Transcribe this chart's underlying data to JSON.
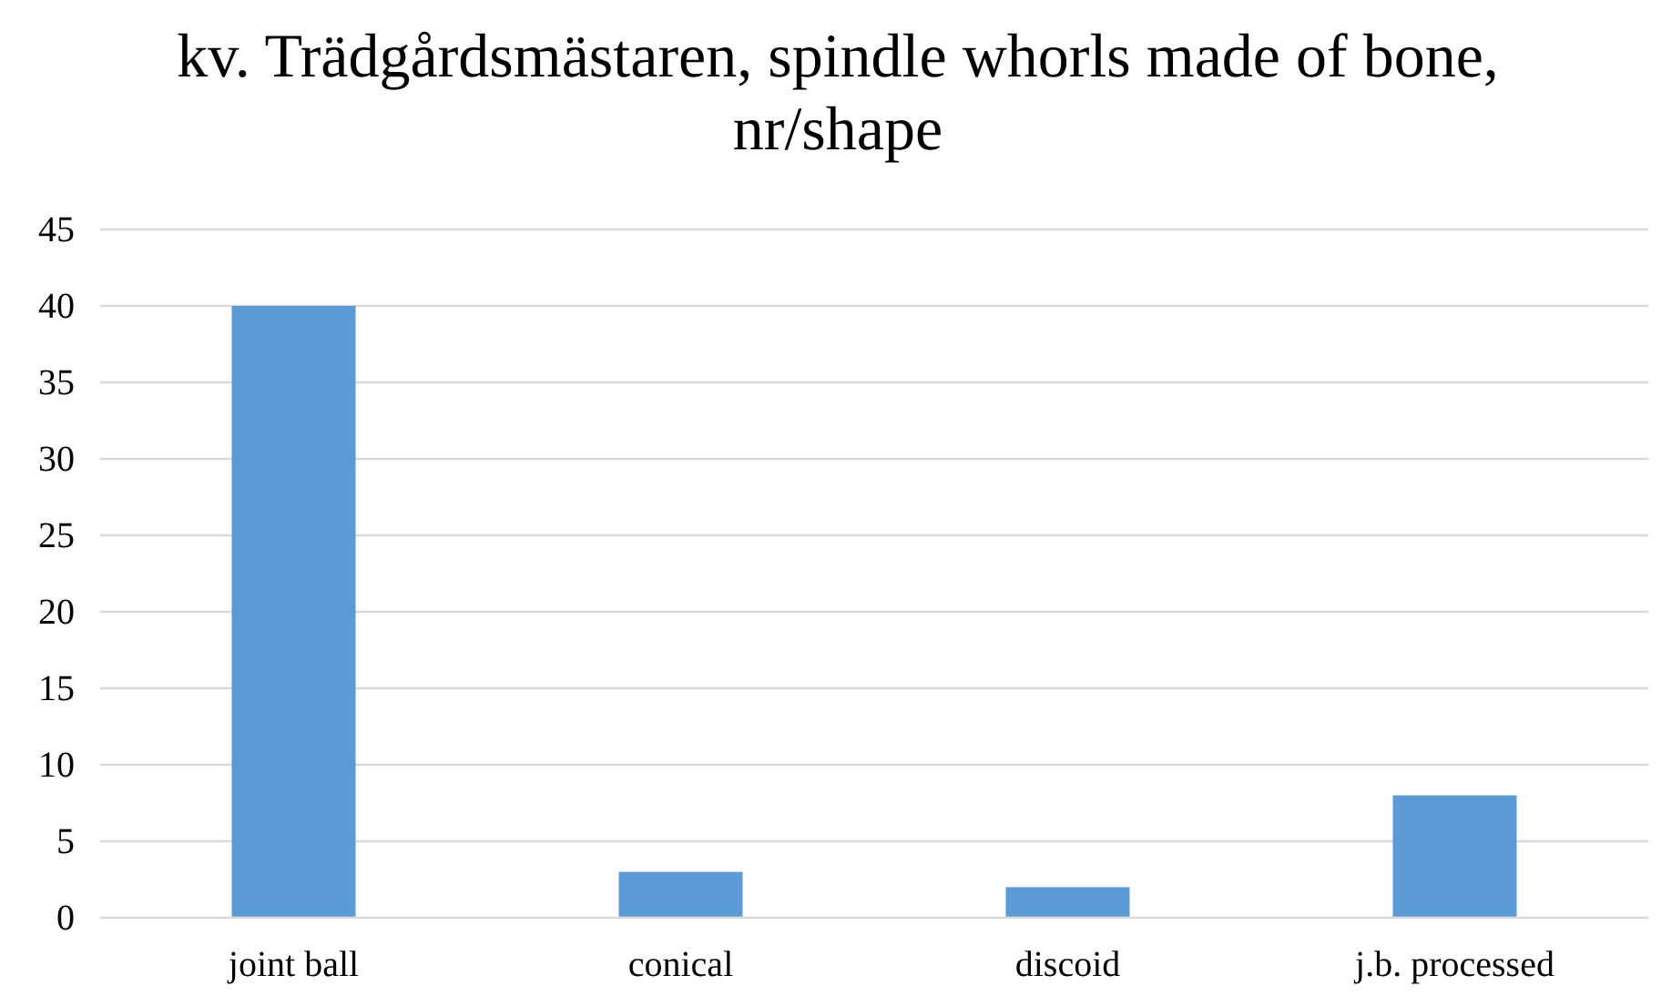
{
  "chart_data": {
    "type": "bar",
    "title": "kv. Trädgårdsmästaren, spindle whorls made of bone, nr/shape",
    "categories": [
      "joint ball",
      "conical",
      "discoid",
      "j.b. processed"
    ],
    "values": [
      40,
      3,
      2,
      8
    ],
    "color": "#5b9bd5",
    "ylim": [
      0,
      45
    ],
    "yticks": [
      0,
      5,
      10,
      15,
      20,
      25,
      30,
      35,
      40,
      45
    ],
    "grid": "y"
  }
}
